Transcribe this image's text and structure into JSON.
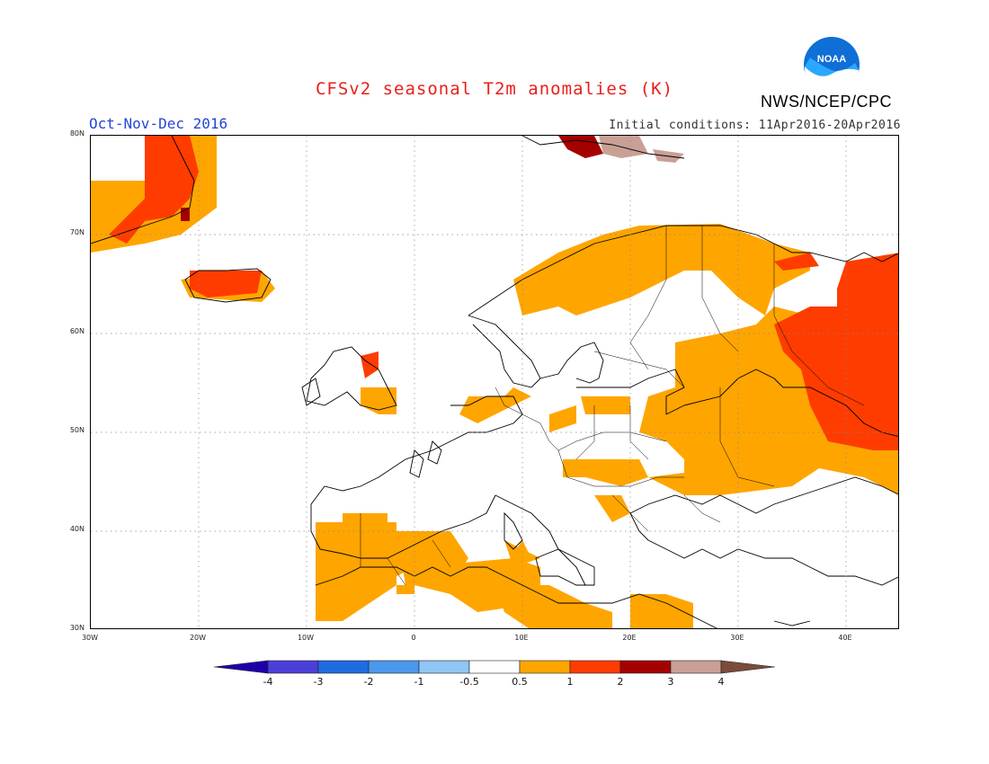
{
  "header": {
    "title": "CFSv2 seasonal T2m anomalies (K)",
    "season": "Oct-Nov-Dec 2016",
    "initial_conditions": "Initial conditions: 11Apr2016-20Apr2016",
    "agency": "NWS/NCEP/CPC",
    "logo_text": "NOAA"
  },
  "map": {
    "lat_ticks": [
      "80N",
      "70N",
      "60N",
      "50N",
      "40N",
      "30N"
    ],
    "lon_ticks": [
      "30W",
      "20W",
      "10W",
      "0",
      "10E",
      "20E",
      "30E",
      "40E"
    ],
    "extent": {
      "lon": [
        -30,
        45
      ],
      "lat": [
        30,
        80
      ]
    },
    "grid": "dotted"
  },
  "legend": {
    "labels": [
      "-4",
      "-3",
      "-2",
      "-1",
      "-0.5",
      "0.5",
      "1",
      "2",
      "3",
      "4"
    ],
    "colors": [
      "#1e00a8",
      "#4a3fd8",
      "#1f6be0",
      "#4a98ee",
      "#8fc6f5",
      "#ffffff",
      "#ffa500",
      "#ff3c00",
      "#a50000",
      "#c8a096",
      "#7a4c3a"
    ]
  },
  "colors": {
    "warm_0_5_1": "#ffa500",
    "warm_1_2": "#ff3c00",
    "warm_2_3": "#a50000",
    "warm_3_4": "#c8a096"
  }
}
